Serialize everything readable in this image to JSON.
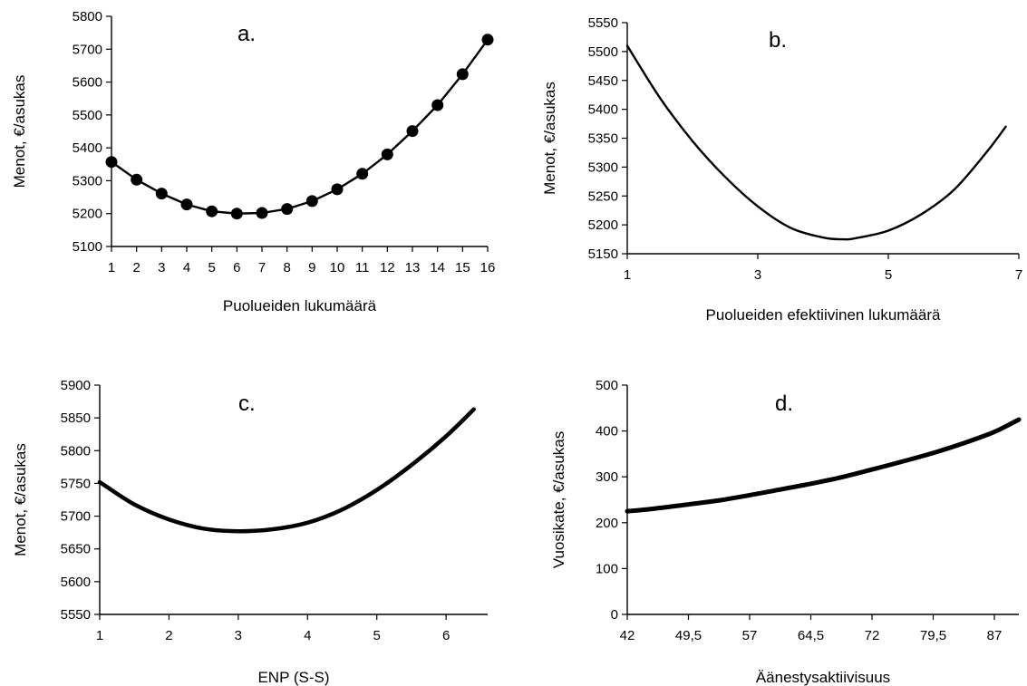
{
  "chart_data": [
    {
      "type": "line",
      "panel_label": "a.",
      "xlabel": "Puolueiden lukumäärä",
      "ylabel": "Menot, €/asukas",
      "xlim": [
        1,
        16
      ],
      "ylim": [
        5100,
        5800
      ],
      "x_ticks": [
        "1",
        "2",
        "3",
        "4",
        "5",
        "6",
        "7",
        "8",
        "9",
        "10",
        "11",
        "12",
        "13",
        "14",
        "15",
        "16"
      ],
      "y_ticks": [
        "5100",
        "5200",
        "5300",
        "5400",
        "5500",
        "5600",
        "5700",
        "5800"
      ],
      "markers": true,
      "grid": false,
      "legend": "none",
      "series": [
        {
          "x": [
            1,
            2,
            3,
            4,
            5,
            6,
            7,
            8,
            9,
            10,
            11,
            12,
            13,
            14,
            15,
            16
          ],
          "values": [
            5357,
            5303,
            5261,
            5228,
            5207,
            5200,
            5202,
            5214,
            5238,
            5274,
            5321,
            5380,
            5451,
            5530,
            5624,
            5729
          ]
        }
      ]
    },
    {
      "type": "line",
      "panel_label": "b.",
      "xlabel": "Puolueiden efektiivinen lukumäärä",
      "ylabel": "Menot, €/asukas",
      "xlim": [
        1,
        7
      ],
      "ylim": [
        5150,
        5550
      ],
      "x_ticks": [
        "1",
        "3",
        "5",
        "7"
      ],
      "y_ticks": [
        "5150",
        "5200",
        "5250",
        "5300",
        "5350",
        "5400",
        "5450",
        "5500",
        "5550"
      ],
      "markers": false,
      "grid": false,
      "legend": "none",
      "series": [
        {
          "x": [
            1,
            1.5,
            2,
            2.5,
            3,
            3.5,
            4,
            4.3,
            4.5,
            5,
            5.5,
            6,
            6.5,
            6.8
          ],
          "values": [
            5510,
            5420,
            5345,
            5283,
            5232,
            5195,
            5178,
            5175,
            5177,
            5190,
            5218,
            5260,
            5325,
            5370
          ]
        }
      ]
    },
    {
      "type": "line",
      "panel_label": "c.",
      "xlabel": "ENP (S-S)",
      "ylabel": "Menot, €/asukas",
      "xlim": [
        1,
        6.6
      ],
      "ylim": [
        5550,
        5900
      ],
      "x_ticks": [
        "1",
        "2",
        "3",
        "4",
        "5",
        "6"
      ],
      "y_ticks": [
        "5550",
        "5600",
        "5650",
        "5700",
        "5750",
        "5800",
        "5850",
        "5900"
      ],
      "markers": false,
      "grid": false,
      "legend": "none",
      "series": [
        {
          "x": [
            1,
            1.5,
            2,
            2.5,
            3,
            3.5,
            4,
            4.5,
            5,
            5.5,
            6,
            6.4
          ],
          "values": [
            5752,
            5718,
            5695,
            5681,
            5677,
            5680,
            5690,
            5710,
            5740,
            5778,
            5822,
            5863
          ]
        }
      ]
    },
    {
      "type": "line",
      "panel_label": "d.",
      "xlabel": "Äänestysaktiivisuus",
      "ylabel": "Vuosikate, €/asukas",
      "xlim": [
        42,
        90
      ],
      "ylim": [
        0,
        500
      ],
      "x_ticks": [
        "42",
        "49,5",
        "57",
        "64,5",
        "72",
        "79,5",
        "87"
      ],
      "x_tick_values": [
        42,
        49.5,
        57,
        64.5,
        72,
        79.5,
        87
      ],
      "y_ticks": [
        "0",
        "100",
        "200",
        "300",
        "400",
        "500"
      ],
      "markers": false,
      "grid": false,
      "legend": "none",
      "series": [
        {
          "x": [
            42,
            45,
            49.5,
            53,
            57,
            60,
            64.5,
            68,
            72,
            75,
            79.5,
            83,
            87,
            90
          ],
          "values": [
            225,
            230,
            240,
            248,
            260,
            270,
            285,
            298,
            316,
            330,
            352,
            372,
            398,
            425
          ]
        }
      ]
    }
  ]
}
